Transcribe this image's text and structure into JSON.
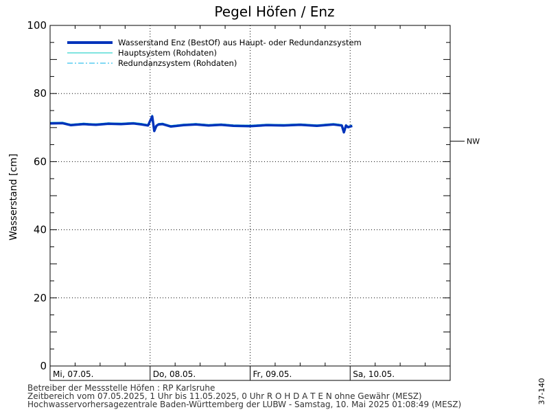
{
  "chart_data": {
    "type": "line",
    "title": "Pegel Höfen / Enz",
    "ylabel": "Wasserstand [cm]",
    "ylim": [
      0,
      100
    ],
    "yticks": [
      0,
      20,
      40,
      60,
      80,
      100
    ],
    "xlim": [
      "2025-05-07T00:00",
      "2025-05-11T00:00"
    ],
    "xticks": [
      {
        "at": "2025-05-07T00:00",
        "label": "Mi, 07.05."
      },
      {
        "at": "2025-05-08T00:00",
        "label": "Do, 08.05."
      },
      {
        "at": "2025-05-09T00:00",
        "label": "Fr, 09.05."
      },
      {
        "at": "2025-05-10T00:00",
        "label": "Sa, 10.05."
      }
    ],
    "grid": true,
    "legend_placement": "top-left",
    "reference_lines": [
      {
        "label": "NW",
        "y": 66
      }
    ],
    "series": [
      {
        "name": "Wasserstand Enz  (BestOf)  aus Haupt- oder Redundanzsystem",
        "color": "#0033bb",
        "style": "thick-solid",
        "x": [
          "2025-05-07T00:00",
          "2025-05-07T03:00",
          "2025-05-07T05:00",
          "2025-05-07T08:00",
          "2025-05-07T11:00",
          "2025-05-07T14:00",
          "2025-05-07T17:00",
          "2025-05-07T20:00",
          "2025-05-07T22:00",
          "2025-05-07T23:30",
          "2025-05-08T00:30",
          "2025-05-08T01:00",
          "2025-05-08T01:30",
          "2025-05-08T02:00",
          "2025-05-08T03:00",
          "2025-05-08T05:00",
          "2025-05-08T08:00",
          "2025-05-08T11:00",
          "2025-05-08T14:00",
          "2025-05-08T17:00",
          "2025-05-08T20:00",
          "2025-05-09T00:00",
          "2025-05-09T04:00",
          "2025-05-09T08:00",
          "2025-05-09T12:00",
          "2025-05-09T16:00",
          "2025-05-09T20:00",
          "2025-05-09T22:00",
          "2025-05-09T22:30",
          "2025-05-09T23:00",
          "2025-05-09T23:30",
          "2025-05-10T00:00",
          "2025-05-10T00:30"
        ],
        "values": [
          71.2,
          71.3,
          70.7,
          71.0,
          70.8,
          71.1,
          71.0,
          71.2,
          70.9,
          70.6,
          73.3,
          69.0,
          70.5,
          70.9,
          71.0,
          70.3,
          70.7,
          70.9,
          70.6,
          70.8,
          70.5,
          70.4,
          70.7,
          70.6,
          70.8,
          70.5,
          70.9,
          70.6,
          68.6,
          70.6,
          70.1,
          70.3,
          70.5
        ]
      },
      {
        "name": "Hauptsystem (Rohdaten)",
        "color": "#00c8c0",
        "style": "thin-solid"
      },
      {
        "name": "Redundanzsystem (Rohdaten)",
        "color": "#00b0e8",
        "style": "dash-dot"
      }
    ]
  },
  "footer": {
    "line1": "Betreiber der Messstelle Höfen : RP Karlsruhe",
    "line2": "Zeitbereich vom 07.05.2025, 1 Uhr bis 11.05.2025, 0 Uhr    R O H D A T E N ohne Gewähr (MESZ)",
    "line3": "Hochwasservorhersagezentrale Baden-Württemberg der LUBW - Samstag, 10. Mai 2025 01:08:49 (MESZ)"
  },
  "side_code": "37-140"
}
